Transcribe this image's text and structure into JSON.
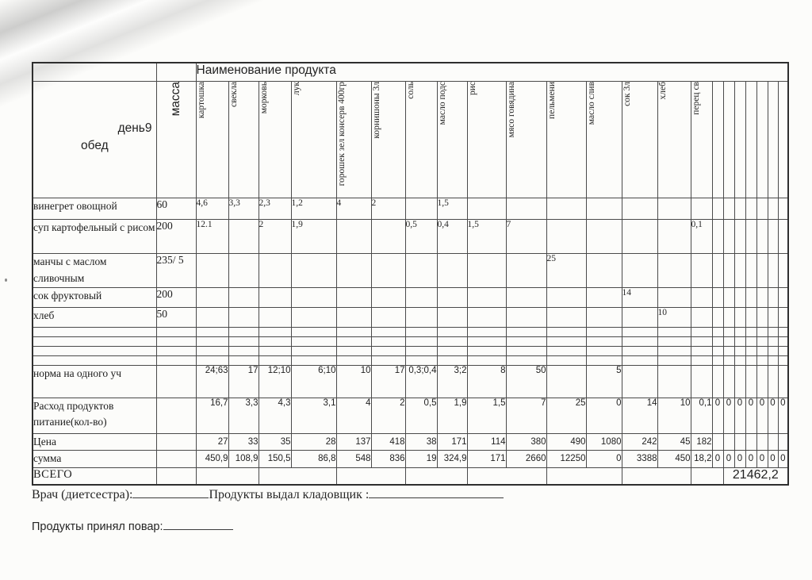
{
  "table": {
    "header": {
      "day": "день9",
      "meal": "обед",
      "mass": "масса",
      "title": "Наименование продукта",
      "products": [
        "картошка",
        "свекла",
        "морковь",
        "лук",
        "горошек зел консерв 400гр",
        "корнишоны 3л",
        "соль",
        "масло подс",
        "рис",
        "мясо говядина",
        "пельмени",
        "масло слив",
        "сок 3л",
        "хлеб",
        "перец св"
      ],
      "empty_narrow_columns": 7
    },
    "dishes": [
      {
        "name": "винегрет овощной",
        "mass": "60",
        "values": [
          "4,6",
          "3,3",
          "2,3",
          "1,2",
          "4",
          "2",
          "",
          "1,5",
          "",
          "",
          "",
          "",
          "",
          "",
          ""
        ]
      },
      {
        "name": "суп картофельный с рисом",
        "mass": "200",
        "values": [
          "12.1",
          "",
          "2",
          "1,9",
          "",
          "",
          "0,5",
          "0,4",
          "1,5",
          "7",
          "",
          "",
          "",
          "",
          "0,1"
        ]
      },
      {
        "name": "манчы с маслом сливочным",
        "mass": "235/ 5",
        "values": [
          "",
          "",
          "",
          "",
          "",
          "",
          "",
          "",
          "",
          "",
          "25",
          "",
          "",
          "",
          ""
        ]
      },
      {
        "name": "сок фруктовый",
        "mass": "200",
        "values": [
          "",
          "",
          "",
          "",
          "",
          "",
          "",
          "",
          "",
          "",
          "",
          "",
          "14",
          "",
          ""
        ]
      },
      {
        "name": "хлеб",
        "mass": "50",
        "values": [
          "",
          "",
          "",
          "",
          "",
          "",
          "",
          "",
          "",
          "",
          "",
          "",
          "",
          "10",
          ""
        ]
      }
    ],
    "empty_rows": 4,
    "norm": {
      "label": "норма на одного уч",
      "values": [
        "24;63",
        "17",
        "12;10",
        "6;10",
        "10",
        "17",
        "0,3;0,4",
        "3;2",
        "8",
        "50",
        "",
        "5",
        "",
        "",
        ""
      ],
      "extra": [
        "",
        "",
        "",
        "",
        "",
        "",
        ""
      ]
    },
    "consumption": {
      "label": "Расход продуктов питание(кол-во)",
      "values": [
        "16,7",
        "3,3",
        "4,3",
        "3,1",
        "4",
        "2",
        "0,5",
        "1,9",
        "1,5",
        "7",
        "25",
        "0",
        "14",
        "10",
        "0,1"
      ],
      "extra": [
        "0",
        "0",
        "0",
        "0",
        "0",
        "0",
        "0"
      ]
    },
    "price": {
      "label": "Цена",
      "values": [
        "27",
        "33",
        "35",
        "28",
        "137",
        "418",
        "38",
        "171",
        "114",
        "380",
        "490",
        "1080",
        "242",
        "45",
        "182"
      ],
      "extra": [
        "",
        "",
        "",
        "",
        "",
        "",
        ""
      ]
    },
    "sum": {
      "label": "сумма",
      "values": [
        "450,9",
        "108,9",
        "150,5",
        "86,8",
        "548",
        "836",
        "19",
        "324,9",
        "171",
        "2660",
        "12250",
        "0",
        "3388",
        "450",
        "18,2"
      ],
      "extra": [
        "0",
        "0",
        "0",
        "0",
        "0",
        "0",
        "0"
      ]
    },
    "total": {
      "label": "ВСЕГО",
      "value": "21462,2"
    }
  },
  "footer": {
    "doctor": "Врач (диетсестра):",
    "issued": "Продукты выдал кладовщик :",
    "cook": "Продукты принял повар:"
  }
}
